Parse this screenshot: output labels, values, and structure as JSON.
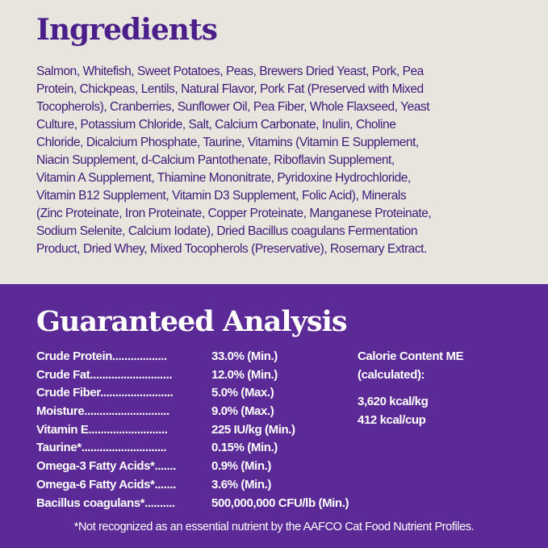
{
  "ingredients": {
    "title": "Ingredients",
    "lines": [
      "Salmon, Whitefish, Sweet Potatoes, Peas, Brewers Dried Yeast, Pork, Pea",
      "Protein, Chickpeas, Lentils, Natural Flavor, Pork Fat (Preserved with Mixed",
      "Tocopherols), Cranberries, Sunflower Oil, Pea Fiber, Whole Flaxseed, Yeast",
      "Culture, Potassium Chloride, Salt, Calcium Carbonate, Inulin, Choline",
      "Chloride, Dicalcium Phosphate, Taurine, Vitamins (Vitamin E Supplement,",
      "Niacin Supplement, d-Calcium Pantothenate, Riboflavin Supplement,",
      "Vitamin A Supplement, Thiamine Mononitrate, Pyridoxine Hydrochloride,",
      "Vitamin B12 Supplement, Vitamin D3 Supplement, Folic Acid), Minerals",
      "(Zinc Proteinate, Iron Proteinate, Copper Proteinate, Manganese Proteinate,",
      "Sodium Selenite, Calcium Iodate), Dried Bacillus coagulans Fermentation",
      "Product, Dried Whey, Mixed Tocopherols (Preservative), Rosemary Extract."
    ]
  },
  "analysis": {
    "title": "Guaranteed Analysis",
    "rows": [
      {
        "label": "Crude  Protein..................",
        "value": "33.0% (Min.)"
      },
      {
        "label": "Crude  Fat...........................",
        "value": "12.0% (Min.)"
      },
      {
        "label": "Crude  Fiber........................",
        "value": "5.0% (Max.)"
      },
      {
        "label": "Moisture............................",
        "value": "9.0% (Max.)"
      },
      {
        "label": "Vitamin  E..........................",
        "value": "225 IU/kg (Min.)"
      },
      {
        "label": "Taurine*............................",
        "value": "0.15% (Min.)"
      },
      {
        "label": "Omega-3 Fatty Acids*.......",
        "value": "0.9% (Min.)"
      },
      {
        "label": "Omega-6 Fatty Acids*.......",
        "value": "3.6% (Min.)"
      },
      {
        "label": "Bacillus  coagulans*..........",
        "value": "500,000,000 CFU/lb (Min.)"
      }
    ],
    "calorie": {
      "heading1": "Calorie Content ME",
      "heading2": "(calculated):",
      "kg": "3,620 kcal/kg",
      "cup": "412 kcal/cup"
    },
    "footnote": "*Not recognized as an essential nutrient by the AAFCO Cat Food Nutrient Profiles."
  },
  "colors": {
    "beige": "#e8e5df",
    "purple": "#5b2a96",
    "title_purple": "#4b1f8a"
  }
}
